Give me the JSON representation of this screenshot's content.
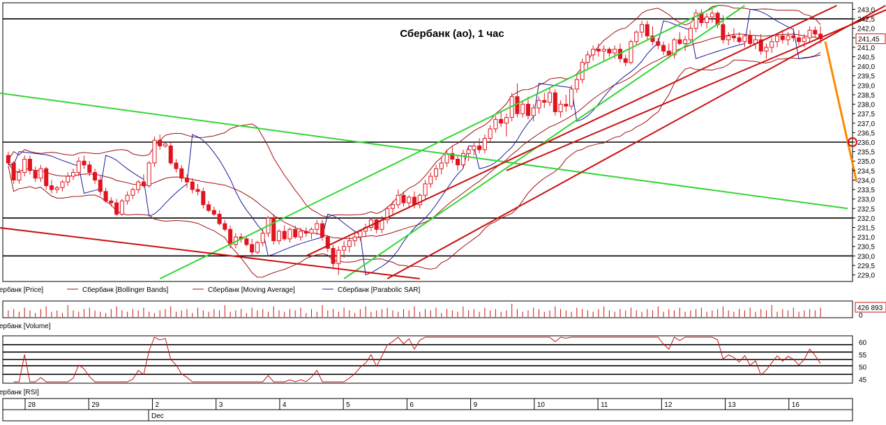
{
  "chart_data": [
    {
      "type": "candlestick",
      "panel": "price",
      "title": "Сбербанк (ао),  1 час",
      "ylim": [
        228.8,
        243.2
      ],
      "y_ticks": [
        "243,0",
        "242,5",
        "242,0",
        "241,5",
        "241,0",
        "240,5",
        "240,0",
        "239,5",
        "239,0",
        "238,5",
        "238,0",
        "237,5",
        "237,0",
        "236,5",
        "236,0",
        "235,5",
        "235,0",
        "234,5",
        "234,0",
        "233,5",
        "233,0",
        "232,5",
        "232,0",
        "231,5",
        "231,0",
        "230,5",
        "230,0",
        "229,5",
        "229,0"
      ],
      "last_price_label": "241,45",
      "horizontal_levels": [
        242.5,
        236.0,
        232.0,
        230.0
      ],
      "candles": [
        [
          235.3,
          235.5,
          234.8,
          234.9
        ],
        [
          234.9,
          235.0,
          233.8,
          234.0
        ],
        [
          234.0,
          234.6,
          233.8,
          234.4
        ],
        [
          234.4,
          235.3,
          234.2,
          235.1
        ],
        [
          235.1,
          235.3,
          234.3,
          234.5
        ],
        [
          234.5,
          234.7,
          233.9,
          234.1
        ],
        [
          234.1,
          234.8,
          233.9,
          234.6
        ],
        [
          234.6,
          234.7,
          233.5,
          233.7
        ],
        [
          233.7,
          234.0,
          233.3,
          233.5
        ],
        [
          233.5,
          233.7,
          233.3,
          233.6
        ],
        [
          233.6,
          234.0,
          233.4,
          233.9
        ],
        [
          233.9,
          234.4,
          233.7,
          234.2
        ],
        [
          234.2,
          234.6,
          234.0,
          234.4
        ],
        [
          234.4,
          235.2,
          234.2,
          235.0
        ],
        [
          235.0,
          235.3,
          234.6,
          234.8
        ],
        [
          234.8,
          235.0,
          234.2,
          234.4
        ],
        [
          234.4,
          234.6,
          233.8,
          234.0
        ],
        [
          234.0,
          234.2,
          233.2,
          233.4
        ],
        [
          233.4,
          233.6,
          232.8,
          232.9
        ],
        [
          232.9,
          233.1,
          232.6,
          232.8
        ],
        [
          232.8,
          233.0,
          232.1,
          232.2
        ],
        [
          232.2,
          233.0,
          232.1,
          232.9
        ],
        [
          232.9,
          233.4,
          232.7,
          233.2
        ],
        [
          233.2,
          233.6,
          233.0,
          233.5
        ],
        [
          233.5,
          234.0,
          233.3,
          233.9
        ],
        [
          233.9,
          234.3,
          233.6,
          233.7
        ],
        [
          233.7,
          235.0,
          233.6,
          234.9
        ],
        [
          234.9,
          236.3,
          234.7,
          236.1
        ],
        [
          236.1,
          236.4,
          235.6,
          235.8
        ],
        [
          235.8,
          236.0,
          235.7,
          235.9
        ],
        [
          235.8,
          236.0,
          234.8,
          234.9
        ],
        [
          234.9,
          235.1,
          234.4,
          234.6
        ],
        [
          234.6,
          234.8,
          233.9,
          234.1
        ],
        [
          234.1,
          234.3,
          233.6,
          233.9
        ],
        [
          233.9,
          234.1,
          233.3,
          233.5
        ],
        [
          233.5,
          233.8,
          233.2,
          233.4
        ],
        [
          233.4,
          233.6,
          232.5,
          232.7
        ],
        [
          232.7,
          232.9,
          232.3,
          232.4
        ],
        [
          232.4,
          232.6,
          232.1,
          232.2
        ],
        [
          232.2,
          232.4,
          231.6,
          231.7
        ],
        [
          231.7,
          231.9,
          231.3,
          231.4
        ],
        [
          231.4,
          231.6,
          230.4,
          230.6
        ],
        [
          230.6,
          231.2,
          230.4,
          231.0
        ],
        [
          231.0,
          231.2,
          230.7,
          230.9
        ],
        [
          230.9,
          231.0,
          230.5,
          230.6
        ],
        [
          230.6,
          230.9,
          230.0,
          230.2
        ],
        [
          230.2,
          230.8,
          230.1,
          230.7
        ],
        [
          230.7,
          231.4,
          230.5,
          231.2
        ],
        [
          231.2,
          232.1,
          231.0,
          232.0
        ],
        [
          232.0,
          232.2,
          230.6,
          230.8
        ],
        [
          230.8,
          231.4,
          230.6,
          231.3
        ],
        [
          231.3,
          231.6,
          230.8,
          230.9
        ],
        [
          230.9,
          231.5,
          230.7,
          231.4
        ],
        [
          231.4,
          231.6,
          230.9,
          231.0
        ],
        [
          231.0,
          231.5,
          230.8,
          231.3
        ],
        [
          231.3,
          231.5,
          231.0,
          231.2
        ],
        [
          231.2,
          231.5,
          230.9,
          231.4
        ],
        [
          231.4,
          231.9,
          231.1,
          231.7
        ],
        [
          231.7,
          231.9,
          230.8,
          231.0
        ],
        [
          231.0,
          231.1,
          230.2,
          230.4
        ],
        [
          230.4,
          230.6,
          229.4,
          229.6
        ],
        [
          229.6,
          230.5,
          229.0,
          230.3
        ],
        [
          230.3,
          230.8,
          229.9,
          230.5
        ],
        [
          230.5,
          231.0,
          230.2,
          230.8
        ],
        [
          230.8,
          231.2,
          230.5,
          231.0
        ],
        [
          231.0,
          231.4,
          230.8,
          231.3
        ],
        [
          231.3,
          231.7,
          231.0,
          231.5
        ],
        [
          231.5,
          232.0,
          231.3,
          231.9
        ],
        [
          231.9,
          232.0,
          231.2,
          231.4
        ],
        [
          231.4,
          232.1,
          231.2,
          231.9
        ],
        [
          231.9,
          232.6,
          231.7,
          232.5
        ],
        [
          232.5,
          232.9,
          232.2,
          232.7
        ],
        [
          232.7,
          233.5,
          232.5,
          233.2
        ],
        [
          233.2,
          233.4,
          232.6,
          232.8
        ],
        [
          232.8,
          233.2,
          232.5,
          233.1
        ],
        [
          233.1,
          233.4,
          232.5,
          232.7
        ],
        [
          232.7,
          233.3,
          232.5,
          233.2
        ],
        [
          233.2,
          234.0,
          233.0,
          233.8
        ],
        [
          233.8,
          234.4,
          233.6,
          234.2
        ],
        [
          234.2,
          234.8,
          234.0,
          234.6
        ],
        [
          234.6,
          235.2,
          234.3,
          234.9
        ],
        [
          234.9,
          235.6,
          234.7,
          235.4
        ],
        [
          235.4,
          235.8,
          234.9,
          235.1
        ],
        [
          235.1,
          235.3,
          234.5,
          234.8
        ],
        [
          234.8,
          235.6,
          234.6,
          235.4
        ],
        [
          235.4,
          235.8,
          235.0,
          235.6
        ],
        [
          235.6,
          236.0,
          235.3,
          235.8
        ],
        [
          235.8,
          236.2,
          235.4,
          235.6
        ],
        [
          235.6,
          236.4,
          235.4,
          236.2
        ],
        [
          236.2,
          236.9,
          236.0,
          236.7
        ],
        [
          236.7,
          237.4,
          236.5,
          237.2
        ],
        [
          237.2,
          237.6,
          236.8,
          237.0
        ],
        [
          237.0,
          237.5,
          236.3,
          237.3
        ],
        [
          237.3,
          238.6,
          237.1,
          238.4
        ],
        [
          238.4,
          239.1,
          237.3,
          237.5
        ],
        [
          237.5,
          238.2,
          237.3,
          238.0
        ],
        [
          238.0,
          238.4,
          237.2,
          237.4
        ],
        [
          237.4,
          238.0,
          237.1,
          237.8
        ],
        [
          237.8,
          238.4,
          237.5,
          238.2
        ],
        [
          238.2,
          238.6,
          237.8,
          238.1
        ],
        [
          238.1,
          238.9,
          237.9,
          238.6
        ],
        [
          238.6,
          238.8,
          237.4,
          237.6
        ],
        [
          237.6,
          238.2,
          237.3,
          238.0
        ],
        [
          238.0,
          238.5,
          237.6,
          237.9
        ],
        [
          237.9,
          239.0,
          237.7,
          238.8
        ],
        [
          238.8,
          239.6,
          238.6,
          239.3
        ],
        [
          239.3,
          240.4,
          239.1,
          240.2
        ],
        [
          240.2,
          240.8,
          239.9,
          240.6
        ],
        [
          240.6,
          241.1,
          240.3,
          240.9
        ],
        [
          240.9,
          241.2,
          240.5,
          240.8
        ],
        [
          240.8,
          241.1,
          240.3,
          240.9
        ],
        [
          240.9,
          241.0,
          240.5,
          240.7
        ],
        [
          240.7,
          241.1,
          240.4,
          240.9
        ],
        [
          240.9,
          241.2,
          240.2,
          240.4
        ],
        [
          240.4,
          240.6,
          240.0,
          240.2
        ],
        [
          240.2,
          241.4,
          240.1,
          241.3
        ],
        [
          241.3,
          241.9,
          241.1,
          241.8
        ],
        [
          241.8,
          242.4,
          241.5,
          242.2
        ],
        [
          242.2,
          242.4,
          241.4,
          241.6
        ],
        [
          241.6,
          242.1,
          241.1,
          241.3
        ],
        [
          241.3,
          241.5,
          240.9,
          241.1
        ],
        [
          241.1,
          241.3,
          240.6,
          240.8
        ],
        [
          240.8,
          241.2,
          240.4,
          240.6
        ],
        [
          240.6,
          241.5,
          240.4,
          241.4
        ],
        [
          241.4,
          241.8,
          241.1,
          241.2
        ],
        [
          241.2,
          241.6,
          240.8,
          241.4
        ],
        [
          241.4,
          242.2,
          241.2,
          242.0
        ],
        [
          242.0,
          243.0,
          241.8,
          242.8
        ],
        [
          242.8,
          243.0,
          242.1,
          242.3
        ],
        [
          242.3,
          242.8,
          242.0,
          242.6
        ],
        [
          242.6,
          243.0,
          242.3,
          242.8
        ],
        [
          242.8,
          242.9,
          242.0,
          242.2
        ],
        [
          242.2,
          242.7,
          241.2,
          241.4
        ],
        [
          241.4,
          241.8,
          241.1,
          241.6
        ],
        [
          241.6,
          242.0,
          241.3,
          241.5
        ],
        [
          241.5,
          241.8,
          241.2,
          241.3
        ],
        [
          241.3,
          241.7,
          241.0,
          241.6
        ],
        [
          241.6,
          241.9,
          241.1,
          241.2
        ],
        [
          241.2,
          241.6,
          240.9,
          241.4
        ],
        [
          241.4,
          241.7,
          240.6,
          240.8
        ],
        [
          240.8,
          241.2,
          240.4,
          241.0
        ],
        [
          241.0,
          241.5,
          240.7,
          241.3
        ],
        [
          241.3,
          241.7,
          241.0,
          241.6
        ],
        [
          241.6,
          241.9,
          241.2,
          241.4
        ],
        [
          241.4,
          241.8,
          241.1,
          241.6
        ],
        [
          241.6,
          242.0,
          241.3,
          241.5
        ],
        [
          241.5,
          241.9,
          241.1,
          241.3
        ],
        [
          241.3,
          241.7,
          241.0,
          241.5
        ],
        [
          241.5,
          242.1,
          241.3,
          241.9
        ],
        [
          241.9,
          242.1,
          241.5,
          241.7
        ],
        [
          241.7,
          242.1,
          241.2,
          241.45
        ]
      ],
      "legend": [
        "Сбербанк [Price]",
        "Сбербанк [Bollinger Bands]",
        "Сбербанк [Moving Average]",
        "Сбербанк [Parabolic SAR]"
      ],
      "colors": {
        "candle": "#e0141e",
        "bollinger": "#a01010",
        "moving_average": "#a01010",
        "parabolic_sar": "#1a1a9c",
        "trend_green": "#33d633",
        "trend_red": "#c81010",
        "forecast": "#ff8800",
        "level": "#000000"
      }
    },
    {
      "type": "bar",
      "panel": "volume",
      "last_value_label": "426 893",
      "zero_label": "0",
      "legend": [
        "Сбербанк [Volume]"
      ],
      "values": [
        0.5,
        0.6,
        0.4,
        0.7,
        0.5,
        0.3,
        0.6,
        0.8,
        0.4,
        0.5,
        0.3,
        0.9,
        0.5,
        0.4,
        0.6,
        0.7,
        0.5,
        0.4,
        0.3,
        0.6,
        0.8,
        0.5,
        0.4,
        0.6,
        0.5,
        0.7,
        0.4,
        0.3,
        0.5,
        0.6,
        0.8,
        0.4,
        0.5,
        0.6,
        0.3,
        0.7,
        0.5,
        0.4,
        0.6,
        0.5,
        0.9,
        0.4,
        0.5,
        0.6,
        0.3,
        0.7,
        0.5,
        0.6,
        0.4,
        0.8,
        0.5,
        0.4,
        0.6,
        0.5,
        0.7,
        0.3,
        0.6,
        0.4,
        0.9,
        0.5,
        0.6,
        0.4,
        0.7,
        0.5,
        0.3,
        0.6,
        0.8,
        0.4,
        0.5,
        0.6,
        0.7,
        0.5,
        0.4,
        0.6,
        0.5,
        0.8,
        0.4,
        0.6,
        0.5,
        0.7,
        0.3,
        0.6,
        0.5,
        0.4,
        0.8,
        0.5,
        0.6,
        0.4,
        0.7,
        0.5,
        0.6,
        0.4,
        0.5,
        1.0,
        0.6,
        0.4,
        0.5,
        0.7,
        0.6,
        0.4,
        0.5,
        0.8,
        0.6,
        0.5,
        0.4,
        0.7,
        0.6,
        0.5,
        0.4,
        0.6,
        0.8,
        0.5,
        0.4,
        0.6,
        0.5,
        0.7,
        0.5,
        0.4,
        0.6,
        0.5,
        0.8,
        0.4,
        0.6,
        0.5,
        0.7,
        0.4,
        0.5,
        0.6,
        0.7,
        0.4,
        0.5,
        0.6,
        0.8,
        0.5,
        0.4,
        0.6,
        0.5,
        0.7,
        0.4,
        0.6,
        0.5,
        0.9,
        0.4,
        0.6,
        0.5,
        0.7,
        0.4,
        0.5,
        0.6,
        0.5,
        0.7,
        0.4
      ]
    },
    {
      "type": "line",
      "panel": "rsi",
      "ylim": [
        44,
        62
      ],
      "y_ticks": [
        "60",
        "55",
        "50",
        "45"
      ],
      "levels": [
        59,
        56,
        53,
        50.5,
        47
      ],
      "legend": [
        "Сбербанк [RSI]"
      ]
    }
  ],
  "time_axis": {
    "labels": [
      "28",
      "29",
      "2",
      "3",
      "4",
      "5",
      "6",
      "9",
      "10",
      "11",
      "12",
      "13",
      "16"
    ],
    "month_label": "Dec"
  }
}
